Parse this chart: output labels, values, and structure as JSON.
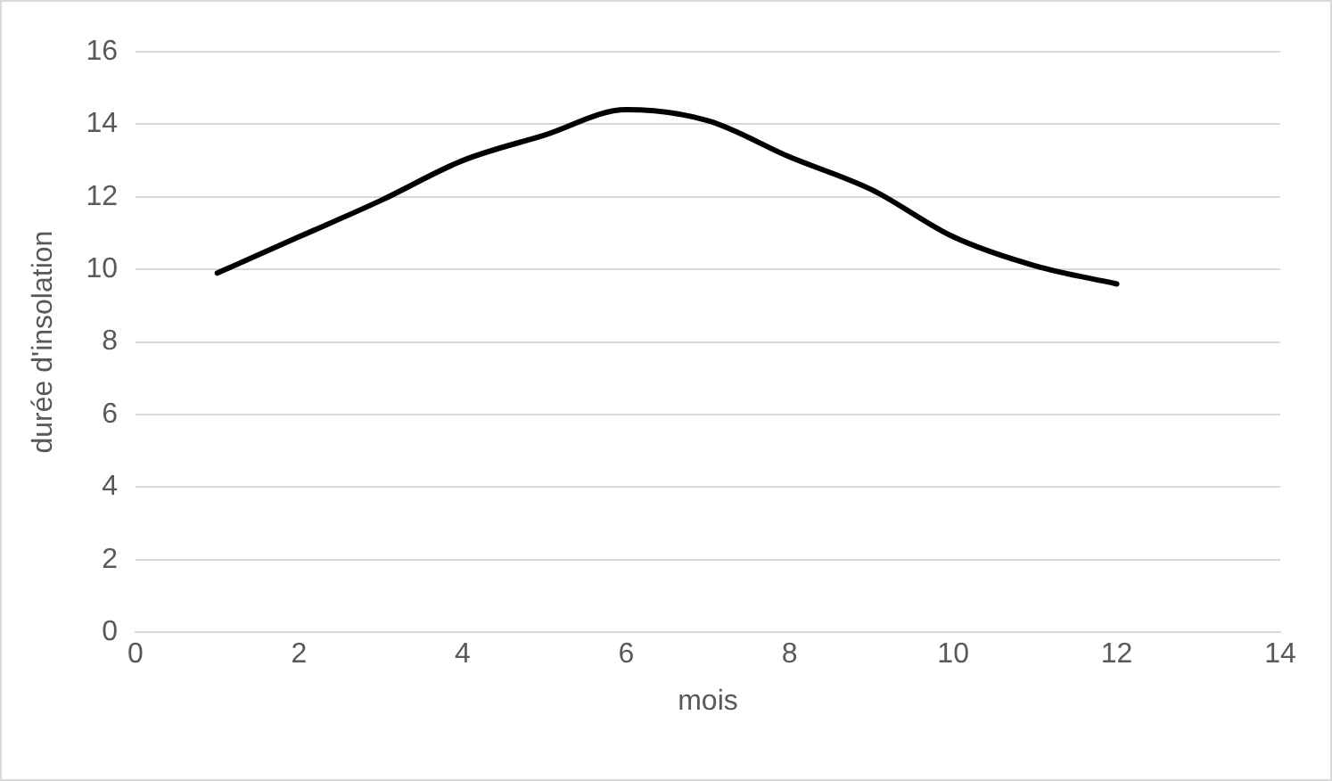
{
  "chart_data": {
    "type": "line",
    "xlabel": "mois",
    "ylabel": "durée d'insolation",
    "x": [
      1,
      2,
      3,
      4,
      5,
      6,
      7,
      8,
      9,
      10,
      11,
      12
    ],
    "series": [
      {
        "color": "#000000",
        "values": [
          9.9,
          10.9,
          11.9,
          13.0,
          13.7,
          14.4,
          14.1,
          13.1,
          12.2,
          10.9,
          10.1,
          9.6
        ]
      }
    ],
    "xlim": [
      0,
      14
    ],
    "xticks": [
      0,
      2,
      4,
      6,
      8,
      10,
      12,
      14
    ],
    "ylim": [
      0,
      16
    ],
    "yticks": [
      0,
      2,
      4,
      6,
      8,
      10,
      12,
      14,
      16
    ],
    "grid": "y",
    "legend": false,
    "marker": "none",
    "line_style": "solid"
  }
}
